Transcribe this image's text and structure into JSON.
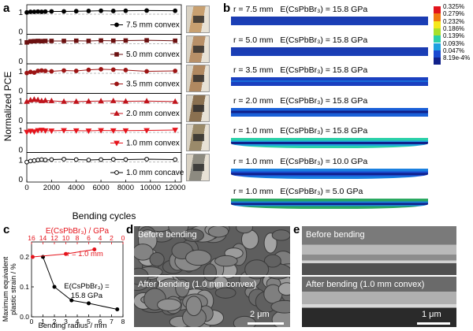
{
  "panels": {
    "a": "a",
    "b": "b",
    "c": "c",
    "d": "d",
    "e": "e"
  },
  "panel_a": {
    "ylabel": "Normalized PCE",
    "xlabel": "Bending cycles",
    "xticks": [
      "0",
      "2000",
      "4000",
      "6000",
      "8000",
      "10000",
      "12000"
    ],
    "rows": [
      {
        "label": "7.5 mm convex",
        "color": "#000000",
        "marker": "circle",
        "filled": true,
        "x": [
          0,
          300,
          600,
          900,
          1200,
          1500,
          2000,
          3000,
          4000,
          5000,
          6000,
          7000,
          8000,
          9700,
          12000
        ],
        "y": [
          0.97,
          1.0,
          1.0,
          1.01,
          1.0,
          1.01,
          1.02,
          1.02,
          1.03,
          1.04,
          1.05,
          1.04,
          1.05,
          1.06,
          1.05
        ]
      },
      {
        "label": "5.0 mm convex",
        "color": "#6b1010",
        "marker": "square",
        "filled": true,
        "x": [
          0,
          300,
          600,
          900,
          1200,
          1500,
          2000,
          3000,
          4000,
          5000,
          6000,
          7000,
          8000,
          9700,
          12000
        ],
        "y": [
          0.95,
          1.0,
          1.01,
          1.02,
          1.01,
          1.02,
          1.02,
          1.02,
          1.03,
          1.02,
          1.04,
          1.03,
          1.04,
          1.05,
          1.03
        ]
      },
      {
        "label": "3.5 mm convex",
        "color": "#9c1414",
        "marker": "circle",
        "filled": true,
        "x": [
          0,
          300,
          600,
          900,
          1200,
          1500,
          2000,
          3000,
          4000,
          5000,
          6000,
          7000,
          8000,
          9700,
          12000
        ],
        "y": [
          0.9,
          0.95,
          0.92,
          1.0,
          1.02,
          1.0,
          0.98,
          1.02,
          1.0,
          1.05,
          1.08,
          1.06,
          1.04,
          0.98,
          1.0
        ]
      },
      {
        "label": "2.0 mm convex",
        "color": "#c0141c",
        "marker": "triangle",
        "filled": true,
        "x": [
          0,
          300,
          600,
          900,
          1200,
          1500,
          2000,
          3000,
          4000,
          5000,
          6000,
          7000,
          8000,
          9700,
          12000
        ],
        "y": [
          0.95,
          1.02,
          1.05,
          1.03,
          0.98,
          1.0,
          0.98,
          0.95,
          0.95,
          0.96,
          0.97,
          0.98,
          0.96,
          0.97,
          0.95
        ]
      },
      {
        "label": "1.0 mm convex",
        "color": "#e5141c",
        "marker": "triangle-down",
        "filled": true,
        "x": [
          0,
          300,
          600,
          900,
          1200,
          1500,
          2000,
          3000,
          4000,
          5000,
          6000,
          7000,
          8000,
          9700,
          12000
        ],
        "y": [
          0.9,
          0.95,
          0.92,
          0.98,
          1.0,
          0.97,
          0.96,
          0.98,
          0.97,
          0.96,
          0.98,
          0.97,
          0.97,
          0.98,
          1.0
        ]
      },
      {
        "label": "1.0 mm concave",
        "color": "#000000",
        "marker": "circle",
        "filled": false,
        "x": [
          0,
          300,
          600,
          900,
          1200,
          1500,
          2000,
          3000,
          4000,
          5000,
          6000,
          7000,
          8000,
          9700,
          12000
        ],
        "y": [
          0.88,
          0.93,
          0.95,
          0.98,
          1.0,
          0.98,
          1.0,
          1.02,
          1.0,
          0.98,
          1.0,
          1.01,
          1.0,
          1.02,
          1.0
        ]
      }
    ],
    "row_ticks": [
      "1",
      "0"
    ]
  },
  "panel_b": {
    "rows": [
      {
        "r": "r = 7.5 mm",
        "e": "E(CsPbBr₃) = 15.8 GPa"
      },
      {
        "r": "r = 5.0 mm",
        "e": "E(CsPbBr₃) = 15.8 GPa"
      },
      {
        "r": "r = 3.5 mm",
        "e": "E(CsPbBr₃) = 15.8 GPa"
      },
      {
        "r": "r = 2.0 mm",
        "e": "E(CsPbBr₃) = 15.8 GPa"
      },
      {
        "r": "r = 1.0 mm",
        "e": "E(CsPbBr₃) = 15.8 GPa"
      },
      {
        "r": "r = 1.0 mm",
        "e": "E(CsPbBr₃) = 10.0 GPa"
      },
      {
        "r": "r = 1.0 mm",
        "e": "E(CsPbBr₃) = 5.0 GPa"
      }
    ],
    "colorbar": [
      "0.325%",
      "0.279%",
      "0.232%",
      "0.186%",
      "0.139%",
      "0.093%",
      "0.047%",
      "8.19e-4%"
    ],
    "colorbar_colors": [
      "#e2141c",
      "#f07a10",
      "#f5e81a",
      "#a8e02a",
      "#2ad0a8",
      "#1ea0e0",
      "#1a4ad0",
      "#10208a"
    ]
  },
  "panel_c": {
    "top_axis_label": "E(CsPbBr₃) / GPa",
    "top_ticks": [
      "16",
      "14",
      "12",
      "10",
      "8",
      "6",
      "4",
      "2",
      "0"
    ],
    "ylabel_line1": "Maximum equivalent",
    "ylabel_line2": "plastic strain / %",
    "xlabel": "Bending radius / mm",
    "yticks": [
      "0.0",
      "0.1",
      "0.2"
    ],
    "xticks": [
      "0",
      "1",
      "2",
      "3",
      "4",
      "5",
      "6",
      "7",
      "8"
    ],
    "red_label": "r = 1.0 mm",
    "black_label_line1": "E(CsPbBr₃) =",
    "black_label_line2": "15.8 GPa"
  },
  "chart_data": [
    {
      "type": "line",
      "title": "",
      "xlabel": "Bending radius / mm",
      "ylabel": "Maximum equivalent plastic strain / %",
      "xlim": [
        0,
        8
      ],
      "ylim": [
        0,
        0.25
      ],
      "series": [
        {
          "name": "E(CsPbBr₃) = 15.8 GPa",
          "color": "#000000",
          "x": [
            1.0,
            2.0,
            3.5,
            5.0,
            7.5
          ],
          "y": [
            0.2,
            0.1,
            0.055,
            0.045,
            0.025
          ]
        }
      ]
    },
    {
      "type": "line",
      "title": "",
      "xlabel": "E(CsPbBr₃) / GPa",
      "xlim": [
        16,
        0
      ],
      "ylim": [
        0,
        0.25
      ],
      "series": [
        {
          "name": "r = 1.0 mm",
          "color": "#e5141c",
          "x": [
            15.8,
            10.0,
            5.0
          ],
          "y": [
            0.2,
            0.21,
            0.225
          ]
        }
      ]
    }
  ],
  "panel_d": {
    "before": "Before bending",
    "after": "After bending (1.0 mm convex)",
    "scale": "2 μm"
  },
  "panel_e": {
    "before": "Before bending",
    "after": "After bending (1.0 mm convex)",
    "scale": "1 μm"
  }
}
